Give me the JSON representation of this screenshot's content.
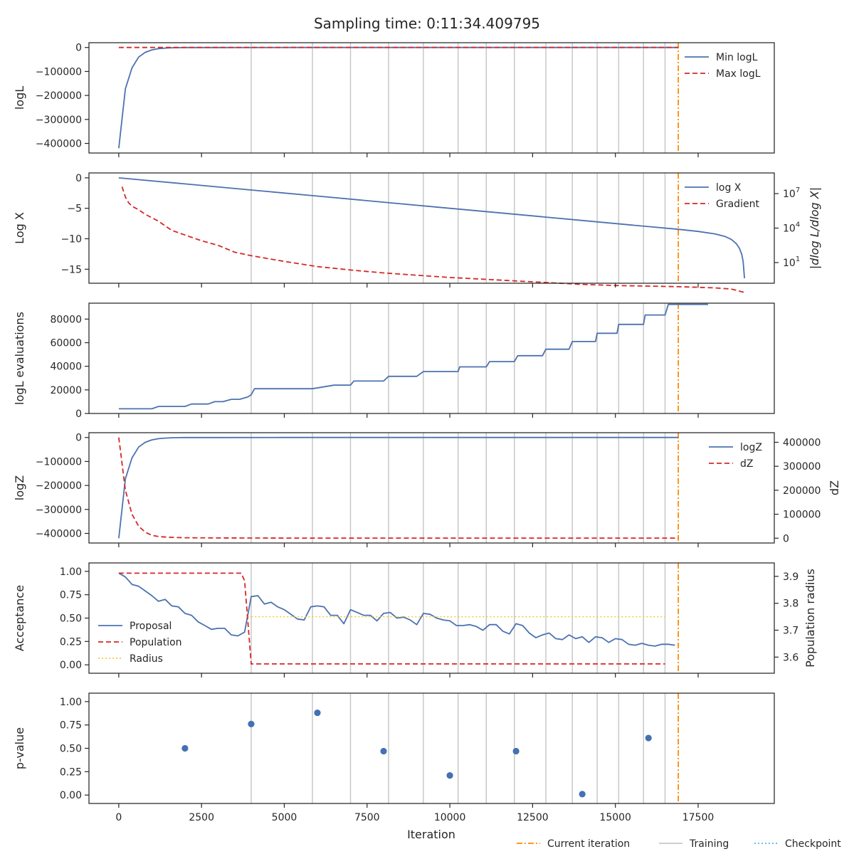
{
  "title": "Sampling time: 0:11:34.409795",
  "colors": {
    "blue": "#4c72b0",
    "red": "#d62728",
    "orange": "#ff8c00",
    "gold": "#f0c419",
    "grey": "#c8c8c8",
    "cyan": "#56b4e9",
    "scatter": "#4470b4"
  },
  "chart_data": {
    "type": "line",
    "shared_x": {
      "label": "Iteration",
      "lim": [
        -900,
        19800
      ],
      "ticks": [
        0,
        2500,
        5000,
        7500,
        10000,
        12500,
        15000,
        17500
      ],
      "tick_labels": [
        "0",
        "2500",
        "5000",
        "7500",
        "10000",
        "12500",
        "15000",
        "17500"
      ]
    },
    "current_iteration": 16900,
    "training_iterations": [
      4000,
      5850,
      7000,
      8150,
      9200,
      10250,
      11100,
      11950,
      12900,
      13700,
      14450,
      15100,
      15850,
      16500
    ],
    "figure_legend": [
      "Current iteration",
      "Training",
      "Checkpoint"
    ],
    "panels": [
      {
        "id": "logL",
        "ylabel": "logL",
        "ylim": [
          -440000,
          20000
        ],
        "yticks": [
          0,
          -100000,
          -200000,
          -300000,
          -400000
        ],
        "ytick_labels": [
          "0",
          "−100000",
          "−200000",
          "−300000",
          "−400000"
        ],
        "legend": [
          "Min logL",
          "Max logL"
        ],
        "series": [
          {
            "name": "Min logL",
            "style": "solid",
            "color": "blue",
            "x": [
              0,
              200,
              400,
              600,
              800,
              1000,
              1200,
              1400,
              1600,
              2000,
              3000,
              5000,
              10000,
              16900
            ],
            "y": [
              -420000,
              -172000,
              -85000,
              -40000,
              -20000,
              -10000,
              -5000,
              -2500,
              -1000,
              -300,
              -50,
              0,
              0,
              0
            ]
          },
          {
            "name": "Max logL",
            "style": "dashed",
            "color": "red",
            "x": [
              0,
              16900
            ],
            "y": [
              0,
              0
            ]
          }
        ]
      },
      {
        "id": "logX",
        "ylabel": "Log X",
        "ylabel_right": "|dlog L/dlog X|",
        "ylim": [
          -17.3,
          0.8
        ],
        "yticks": [
          0,
          -5,
          -10,
          -15
        ],
        "ytick_labels": [
          "0",
          "−5",
          "−10",
          "−15"
        ],
        "right_log10_lim": [
          -0.8,
          8.8
        ],
        "right_ticks": [
          1,
          4,
          7
        ],
        "right_tick_labels": [
          "10",
          "10",
          "10"
        ],
        "right_tick_exponents": [
          "1",
          "4",
          "7"
        ],
        "legend": [
          "log X",
          "Gradient"
        ],
        "series": [
          {
            "name": "log X",
            "style": "solid",
            "color": "blue",
            "x": [
              0,
              2000,
              4000,
              6000,
              8000,
              10000,
              12000,
              14000,
              16000,
              16900,
              17500,
              18000,
              18300,
              18500,
              18650,
              18750,
              18820,
              18860,
              18900
            ],
            "y": [
              0,
              -1.0,
              -2.0,
              -3.0,
              -4.0,
              -5.0,
              -6.0,
              -7.0,
              -8.0,
              -8.45,
              -8.8,
              -9.2,
              -9.6,
              -10.1,
              -10.8,
              -11.6,
              -12.6,
              -13.8,
              -16.5
            ]
          },
          {
            "name": "Gradient",
            "style": "dashed",
            "color": "red",
            "axis": "right_log10",
            "x": [
              100,
              200,
              300,
              400,
              600,
              800,
              1000,
              1200,
              1400,
              1600,
              2000,
              2500,
              3000,
              3500,
              4000,
              5000,
              6000,
              7000,
              8000,
              9000,
              10000,
              11000,
              12000,
              13000,
              14000,
              15000,
              16000,
              16900,
              17500,
              18000,
              18500,
              18900
            ],
            "y": [
              7.6,
              6.7,
              6.2,
              5.9,
              5.6,
              5.2,
              4.9,
              4.6,
              4.2,
              3.8,
              3.4,
              2.9,
              2.5,
              1.9,
              1.6,
              1.1,
              0.65,
              0.35,
              0.1,
              -0.1,
              -0.3,
              -0.45,
              -0.6,
              -0.75,
              -0.9,
              -1.0,
              -1.05,
              -1.1,
              -1.15,
              -1.2,
              -1.3,
              -1.6
            ]
          }
        ]
      },
      {
        "id": "evals",
        "ylabel": "logL evaluations",
        "ylim": [
          0,
          93500
        ],
        "yticks": [
          0,
          20000,
          40000,
          60000,
          80000
        ],
        "ytick_labels": [
          "0",
          "20000",
          "40000",
          "60000",
          "80000"
        ],
        "series": [
          {
            "name": "logL evaluations",
            "style": "solid",
            "color": "blue",
            "x": [
              0,
              1000,
              1200,
              2000,
              2200,
              2700,
              2900,
              3150,
              3400,
              3650,
              3900,
              4000,
              4100,
              5600,
              5850,
              6500,
              6900,
              7000,
              7100,
              7800,
              8000,
              8150,
              8200,
              8800,
              9000,
              9200,
              9300,
              10050,
              10250,
              10300,
              10900,
              11100,
              11200,
              11700,
              11950,
              12050,
              12550,
              12800,
              12900,
              13400,
              13600,
              13700,
              14100,
              14400,
              14450,
              14600,
              15050,
              15100,
              15150,
              15700,
              15850,
              15900,
              16300,
              16500,
              16600,
              17800
            ],
            "y": [
              4000,
              4000,
              6000,
              6000,
              8000,
              8000,
              10000,
              10000,
              12000,
              12000,
              14000,
              16000,
              21000,
              21000,
              21000,
              24000,
              24000,
              24000,
              27500,
              27500,
              27500,
              31500,
              31500,
              31500,
              31500,
              35500,
              35500,
              35500,
              35500,
              39500,
              39500,
              39500,
              44000,
              44000,
              44000,
              49000,
              49000,
              49000,
              54500,
              54500,
              54500,
              61000,
              61000,
              61000,
              68000,
              68000,
              68000,
              75500,
              75500,
              75500,
              75500,
              83500,
              83500,
              83500,
              92500,
              92500
            ]
          }
        ]
      },
      {
        "id": "logZ",
        "ylabel": "logZ",
        "ylabel_right": "dZ",
        "ylim": [
          -440000,
          20000
        ],
        "yticks": [
          0,
          -100000,
          -200000,
          -300000,
          -400000
        ],
        "ytick_labels": [
          "0",
          "−100000",
          "−200000",
          "−300000",
          "−400000"
        ],
        "right_ylim": [
          -20000,
          440000
        ],
        "right_ticks": [
          0,
          100000,
          200000,
          300000,
          400000
        ],
        "right_tick_labels": [
          "0",
          "100000",
          "200000",
          "300000",
          "400000"
        ],
        "legend": [
          "logZ",
          "dZ"
        ],
        "series": [
          {
            "name": "logZ",
            "style": "solid",
            "color": "blue",
            "x": [
              0,
              200,
              400,
              600,
              800,
              1000,
              1200,
              1400,
              1600,
              2000,
              3000,
              5000,
              10000,
              16900
            ],
            "y": [
              -420000,
              -172000,
              -85000,
              -40000,
              -20000,
              -10000,
              -5000,
              -2500,
              -1000,
              -300,
              -50,
              0,
              0,
              0
            ]
          },
          {
            "name": "dZ",
            "style": "dashed",
            "color": "red",
            "axis": "right",
            "x": [
              0,
              200,
              400,
              600,
              800,
              1000,
              1200,
              1500,
              2000,
              3000,
              5000,
              10000,
              16900
            ],
            "y": [
              420000,
              200000,
              100000,
              50000,
              25000,
              12000,
              7000,
              4000,
              2000,
              1000,
              500,
              500,
              500
            ]
          }
        ]
      },
      {
        "id": "acceptance",
        "ylabel": "Acceptance",
        "ylabel_right": "Population radius",
        "ylim": [
          -0.09,
          1.09
        ],
        "yticks": [
          0,
          0.25,
          0.5,
          0.75,
          1.0
        ],
        "ytick_labels": [
          "0.00",
          "0.25",
          "0.50",
          "0.75",
          "1.00"
        ],
        "right_ylim": [
          3.54,
          3.95
        ],
        "right_ticks": [
          3.6,
          3.7,
          3.8,
          3.9
        ],
        "right_tick_labels": [
          "3.6",
          "3.7",
          "3.8",
          "3.9"
        ],
        "legend": [
          "Proposal",
          "Population",
          "Radius"
        ],
        "series": [
          {
            "name": "Proposal",
            "style": "solid",
            "color": "blue",
            "x": [
              0,
              200,
              400,
              600,
              800,
              1000,
              1200,
              1400,
              1600,
              1800,
              2000,
              2200,
              2400,
              2600,
              2800,
              3000,
              3200,
              3400,
              3600,
              3800,
              4000,
              4200,
              4400,
              4600,
              4800,
              5000,
              5200,
              5400,
              5600,
              5800,
              6000,
              6200,
              6400,
              6600,
              6800,
              7000,
              7200,
              7400,
              7600,
              7800,
              8000,
              8200,
              8400,
              8600,
              8800,
              9000,
              9200,
              9400,
              9600,
              9800,
              10000,
              10200,
              10400,
              10600,
              10800,
              11000,
              11200,
              11400,
              11600,
              11800,
              12000,
              12200,
              12400,
              12600,
              12800,
              13000,
              13200,
              13400,
              13600,
              13800,
              14000,
              14200,
              14400,
              14600,
              14800,
              15000,
              15200,
              15400,
              15600,
              15800,
              16000,
              16200,
              16400,
              16600,
              16800
            ],
            "y": [
              0.98,
              0.94,
              0.86,
              0.84,
              0.79,
              0.74,
              0.68,
              0.7,
              0.63,
              0.62,
              0.55,
              0.53,
              0.46,
              0.42,
              0.38,
              0.39,
              0.39,
              0.32,
              0.31,
              0.35,
              0.73,
              0.74,
              0.65,
              0.67,
              0.62,
              0.59,
              0.54,
              0.49,
              0.48,
              0.62,
              0.63,
              0.62,
              0.53,
              0.53,
              0.44,
              0.59,
              0.56,
              0.53,
              0.53,
              0.47,
              0.55,
              0.56,
              0.5,
              0.51,
              0.48,
              0.43,
              0.55,
              0.54,
              0.5,
              0.48,
              0.47,
              0.42,
              0.42,
              0.43,
              0.41,
              0.37,
              0.43,
              0.43,
              0.36,
              0.33,
              0.44,
              0.42,
              0.34,
              0.29,
              0.32,
              0.34,
              0.28,
              0.27,
              0.32,
              0.28,
              0.3,
              0.24,
              0.3,
              0.29,
              0.24,
              0.28,
              0.27,
              0.22,
              0.21,
              0.23,
              0.21,
              0.2,
              0.22,
              0.22,
              0.21
            ]
          },
          {
            "name": "Population",
            "style": "dashed",
            "color": "red",
            "x": [
              0,
              3700,
              3800,
              4000,
              16500
            ],
            "y": [
              0.98,
              0.98,
              0.9,
              0.01,
              0.01
            ]
          },
          {
            "name": "Radius",
            "style": "dotted",
            "color": "gold",
            "axis": "right",
            "x": [
              3900,
              16500
            ],
            "y": [
              3.75,
              3.75
            ]
          }
        ]
      },
      {
        "id": "pvalue",
        "ylabel": "p-value",
        "ylim": [
          -0.09,
          1.09
        ],
        "yticks": [
          0,
          0.25,
          0.5,
          0.75,
          1.0
        ],
        "ytick_labels": [
          "0.00",
          "0.25",
          "0.50",
          "0.75",
          "1.00"
        ],
        "points": {
          "x": [
            2000,
            4000,
            6000,
            8000,
            10000,
            12000,
            14000,
            16000
          ],
          "y": [
            0.5,
            0.76,
            0.88,
            0.47,
            0.21,
            0.47,
            0.01,
            0.61
          ]
        }
      }
    ]
  }
}
